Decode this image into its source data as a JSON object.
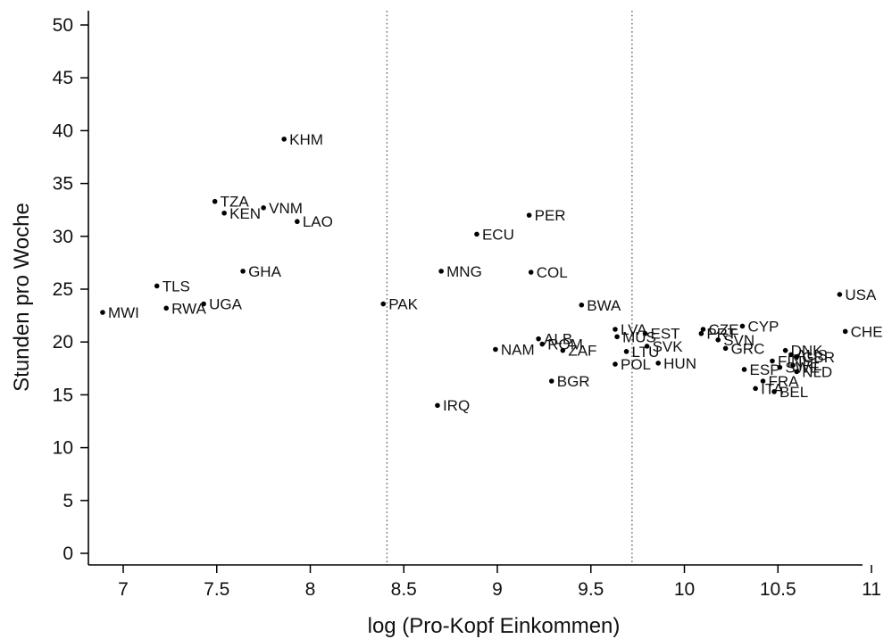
{
  "chart_data": {
    "type": "scatter",
    "title": "",
    "xlabel": "log (Pro-Kopf Einkommen)",
    "ylabel": "Stunden pro Woche",
    "xlim": [
      6.8,
      11.1
    ],
    "ylim": [
      -1,
      52
    ],
    "xticks": [
      7,
      7.5,
      8,
      8.5,
      9,
      9.5,
      10,
      10.5,
      11
    ],
    "xtick_labels": [
      "7",
      "7.5",
      "8",
      "8.5",
      "9",
      "9.5",
      "10",
      "10.5",
      "11"
    ],
    "yticks": [
      0,
      5,
      10,
      15,
      20,
      25,
      30,
      35,
      40,
      45,
      50
    ],
    "ytick_labels": [
      "0",
      "5",
      "10",
      "15",
      "20",
      "25",
      "30",
      "35",
      "40",
      "45",
      "50"
    ],
    "grid": false,
    "vlines": [
      8.41,
      9.72
    ],
    "marker_color": "#000000",
    "points": [
      {
        "label": "KHM",
        "x": 7.86,
        "y": 39.2
      },
      {
        "label": "TZA",
        "x": 7.49,
        "y": 33.3
      },
      {
        "label": "VNM",
        "x": 7.75,
        "y": 32.7
      },
      {
        "label": "KEN",
        "x": 7.54,
        "y": 32.2
      },
      {
        "label": "LAO",
        "x": 7.93,
        "y": 31.4
      },
      {
        "label": "GHA",
        "x": 7.64,
        "y": 26.7
      },
      {
        "label": "TLS",
        "x": 7.18,
        "y": 25.3
      },
      {
        "label": "UGA",
        "x": 7.43,
        "y": 23.6
      },
      {
        "label": "RWA",
        "x": 7.23,
        "y": 23.2
      },
      {
        "label": "MWI",
        "x": 6.89,
        "y": 22.8
      },
      {
        "label": "PAK",
        "x": 8.39,
        "y": 23.6
      },
      {
        "label": "PER",
        "x": 9.17,
        "y": 32.0
      },
      {
        "label": "ECU",
        "x": 8.89,
        "y": 30.2
      },
      {
        "label": "MNG",
        "x": 8.7,
        "y": 26.7
      },
      {
        "label": "COL",
        "x": 9.18,
        "y": 26.6
      },
      {
        "label": "BWA",
        "x": 9.45,
        "y": 23.5
      },
      {
        "label": "IRQ",
        "x": 8.68,
        "y": 14.0
      },
      {
        "label": "BGR",
        "x": 9.29,
        "y": 16.3
      },
      {
        "label": "NAM",
        "x": 8.99,
        "y": 19.3
      },
      {
        "label": "ALB",
        "x": 9.22,
        "y": 20.3
      },
      {
        "label": "ROM",
        "x": 9.24,
        "y": 19.8
      },
      {
        "label": "ZAF",
        "x": 9.35,
        "y": 19.2
      },
      {
        "label": "LVA",
        "x": 9.63,
        "y": 21.2
      },
      {
        "label": "MUS",
        "x": 9.64,
        "y": 20.5
      },
      {
        "label": "EST",
        "x": 9.79,
        "y": 20.8
      },
      {
        "label": "LTU",
        "x": 9.69,
        "y": 19.1
      },
      {
        "label": "SVK",
        "x": 9.8,
        "y": 19.6
      },
      {
        "label": "POL",
        "x": 9.63,
        "y": 17.9
      },
      {
        "label": "HUN",
        "x": 9.86,
        "y": 18.0
      },
      {
        "label": "CZE",
        "x": 10.1,
        "y": 21.2
      },
      {
        "label": "PRT",
        "x": 10.09,
        "y": 20.8
      },
      {
        "label": "CYP",
        "x": 10.31,
        "y": 21.5
      },
      {
        "label": "SVN",
        "x": 10.18,
        "y": 20.2
      },
      {
        "label": "GRC",
        "x": 10.22,
        "y": 19.4
      },
      {
        "label": "ESP",
        "x": 10.32,
        "y": 17.4
      },
      {
        "label": "USA",
        "x": 10.83,
        "y": 24.5
      },
      {
        "label": "CHE",
        "x": 10.86,
        "y": 21.0
      },
      {
        "label": "DNK",
        "x": 10.54,
        "y": 19.2
      },
      {
        "label": "AUS",
        "x": 10.57,
        "y": 18.8
      },
      {
        "label": "GBR",
        "x": 10.6,
        "y": 18.6
      },
      {
        "label": "FIN",
        "x": 10.47,
        "y": 18.2
      },
      {
        "label": "IRL",
        "x": 10.58,
        "y": 17.8
      },
      {
        "label": "SWE",
        "x": 10.51,
        "y": 17.6
      },
      {
        "label": "FRA",
        "x": 10.42,
        "y": 16.3
      },
      {
        "label": "NLD",
        "x": 10.6,
        "y": 17.2
      },
      {
        "label": "ITA",
        "x": 10.38,
        "y": 15.6
      },
      {
        "label": "BEL",
        "x": 10.48,
        "y": 15.3
      }
    ]
  }
}
